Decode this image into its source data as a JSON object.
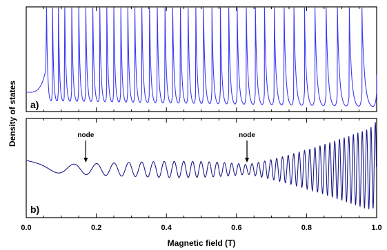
{
  "chart_data": [
    {
      "type": "line",
      "panel_label": "a)",
      "xlim": [
        0.0,
        1.0
      ],
      "series_color": "#3a3af0",
      "description_values": {
        "x_spike_positions": [
          0.058,
          0.075,
          0.092,
          0.11,
          0.13,
          0.15,
          0.17,
          0.19,
          0.21,
          0.23,
          0.25,
          0.27,
          0.29,
          0.31,
          0.33,
          0.352,
          0.374,
          0.396,
          0.418,
          0.44,
          0.462,
          0.484,
          0.506,
          0.53,
          0.554,
          0.578,
          0.602,
          0.628,
          0.654,
          0.68,
          0.708,
          0.736,
          0.764,
          0.794,
          0.824,
          0.856,
          0.888,
          0.922,
          0.958
        ],
        "baseline_start": 0.06,
        "baseline_end": 0.02
      }
    },
    {
      "type": "line",
      "panel_label": "b)",
      "xlim": [
        0.0,
        1.0
      ],
      "series_color": "#1a1a8a",
      "annotations": [
        {
          "text": "node",
          "x": 0.17
        },
        {
          "text": "node",
          "x": 0.63
        }
      ]
    }
  ],
  "axes": {
    "xlabel": "Magnetic field (T)",
    "ylabel": "Density of states",
    "xticks": [
      "0.0",
      "0.2",
      "0.4",
      "0.6",
      "0.8",
      "1.0"
    ],
    "xtick_values": [
      0.0,
      0.2,
      0.4,
      0.6,
      0.8,
      1.0
    ]
  }
}
